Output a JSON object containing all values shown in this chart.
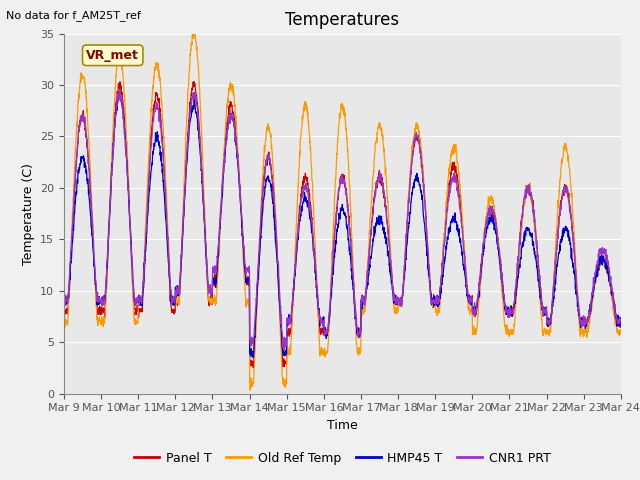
{
  "title": "Temperatures",
  "xlabel": "Time",
  "ylabel": "Temperature (C)",
  "no_data_text": "No data for f_AM25T_ref",
  "vr_met_label": "VR_met",
  "ylim": [
    0,
    35
  ],
  "xlim": [
    0,
    15
  ],
  "xtick_labels": [
    "Mar 9",
    "Mar 10",
    "Mar 11",
    "Mar 12",
    "Mar 13",
    "Mar 14",
    "Mar 15",
    "Mar 16",
    "Mar 17",
    "Mar 18",
    "Mar 19",
    "Mar 20",
    "Mar 21",
    "Mar 22",
    "Mar 23",
    "Mar 24"
  ],
  "legend_entries": [
    "Panel T",
    "Old Ref Temp",
    "HMP45 T",
    "CNR1 PRT"
  ],
  "line_colors": [
    "#cc0000",
    "#ff9900",
    "#0000cc",
    "#9933cc"
  ],
  "background_color": "#f0f0f0",
  "plot_bg_color": "#e8e8e8",
  "grid_color": "#ffffff",
  "title_fontsize": 12,
  "label_fontsize": 9,
  "tick_fontsize": 8,
  "legend_fontsize": 9,
  "daily_peaks_panel": [
    27,
    30,
    29,
    30,
    28,
    23,
    21,
    21,
    21,
    25,
    22,
    18,
    20,
    20,
    13
  ],
  "daily_troughs_panel": [
    8,
    8,
    8,
    9,
    11,
    3,
    6,
    6,
    9,
    9,
    9,
    8,
    8,
    7,
    7
  ],
  "daily_peaks_orange": [
    31,
    33,
    32,
    35,
    30,
    26,
    28,
    28,
    26,
    26,
    24,
    19,
    20,
    24,
    13
  ],
  "daily_troughs_orange": [
    7,
    7,
    9,
    9,
    9,
    1,
    4,
    4,
    8,
    9,
    8,
    6,
    6,
    6,
    6
  ],
  "daily_peaks_blue": [
    23,
    29,
    25,
    28,
    27,
    21,
    19,
    18,
    17,
    21,
    17,
    17,
    16,
    16,
    13
  ],
  "daily_troughs_blue": [
    9,
    9,
    9,
    10,
    11,
    4,
    7,
    6,
    9,
    9,
    9,
    8,
    8,
    7,
    7
  ],
  "daily_peaks_purple": [
    27,
    29,
    28,
    29,
    27,
    23,
    20,
    21,
    21,
    25,
    21,
    18,
    20,
    20,
    14
  ],
  "daily_troughs_purple": [
    9,
    9,
    9,
    10,
    12,
    5,
    7,
    6,
    9,
    9,
    9,
    8,
    8,
    7,
    7
  ]
}
